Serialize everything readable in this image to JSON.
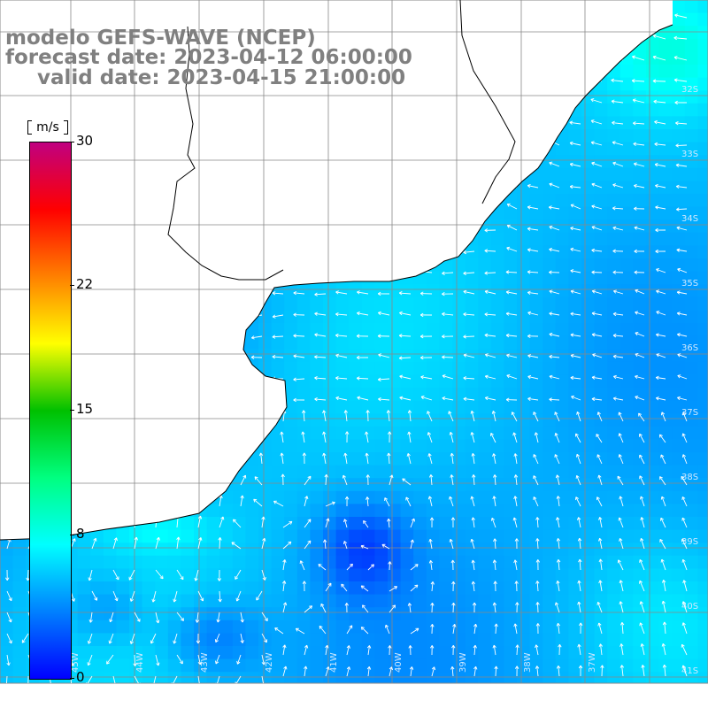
{
  "title": {
    "model": "modelo GEFS-WAVE (NCEP)",
    "forecast": "forecast date: 2023-04-12 06:00:00",
    "valid": "valid date: 2023-04-15 21:00:00"
  },
  "colorbar": {
    "unit": "m/s",
    "min": 0,
    "max": 30,
    "ticks": [
      "30",
      "22",
      "15",
      "8",
      "0"
    ],
    "tick_values": [
      30,
      22,
      15,
      8,
      0
    ],
    "gradient": [
      "#0000ff",
      "#0080ff",
      "#00ffff",
      "#00ff80",
      "#00c000",
      "#ffff00",
      "#ff8000",
      "#ff0000",
      "#c00080"
    ]
  },
  "map": {
    "variable": "wind speed with direction arrows",
    "land_color": "#ffffff",
    "coastline_color": "#000000",
    "grid_color": "#888888",
    "arrow_color": "#ffffff",
    "lon_labels": [
      "45W",
      "44W",
      "43W",
      "42W",
      "41W",
      "40W",
      "39W",
      "38W",
      "37W"
    ],
    "lat_labels": [
      "32S",
      "33S",
      "34S",
      "35S",
      "36S",
      "37S",
      "38S",
      "39S",
      "40S",
      "41S"
    ]
  }
}
